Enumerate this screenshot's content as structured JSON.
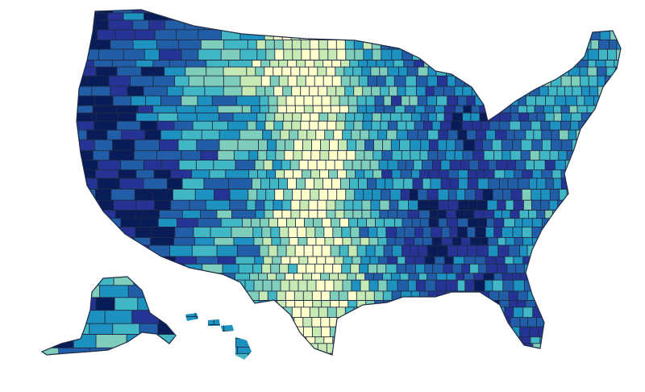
{
  "map": {
    "type": "choropleth",
    "units": "counties",
    "palette": [
      "#ffffcc",
      "#c7e9b4",
      "#7fcdbb",
      "#41b6c4",
      "#1d91c0",
      "#225ea8",
      "#253494",
      "#081d58"
    ]
  }
}
